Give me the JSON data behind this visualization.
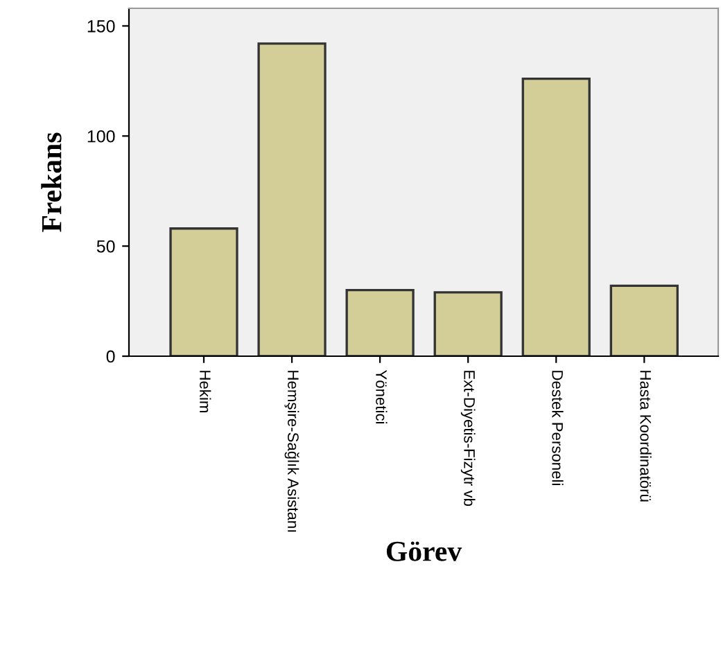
{
  "chart_data": {
    "type": "bar",
    "xlabel": "Görev",
    "ylabel": "Frekans",
    "categories": [
      "Hekim",
      "Hemşire-Sağlık Asistanı",
      "Yönetici",
      "Ext-Diyetis-Fizytr vb",
      "Destek Personeli",
      "Hasta Koordinatörü"
    ],
    "values": [
      58,
      142,
      30,
      29,
      126,
      32
    ],
    "color": "#d3ce97",
    "ylim": [
      0,
      158
    ],
    "yticks": [
      0,
      50,
      100,
      150
    ],
    "grid": false,
    "legend": false
  }
}
